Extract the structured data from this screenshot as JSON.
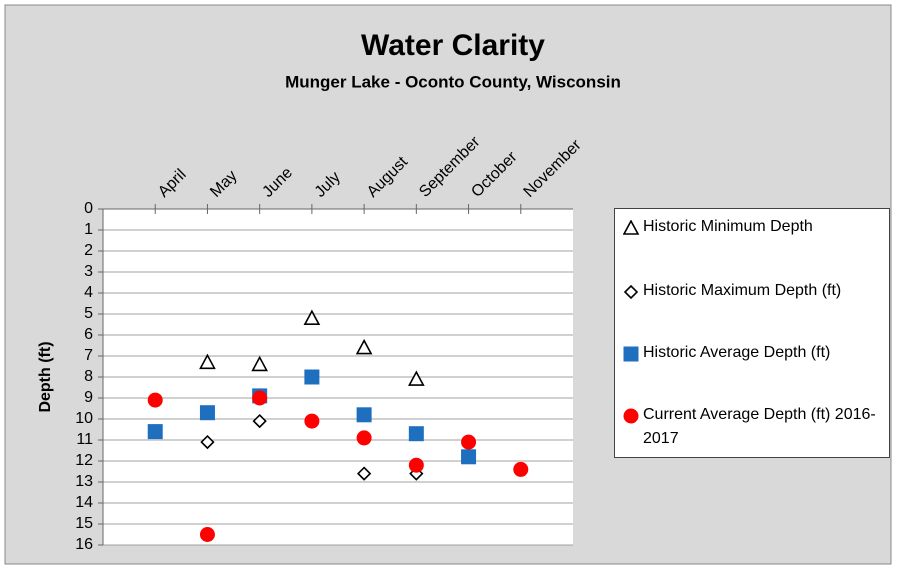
{
  "chart_data": {
    "type": "scatter",
    "title": "Water Clarity",
    "subtitle": "Munger Lake - Oconto County, Wisconsin",
    "y_label": "Depth (ft)",
    "categories": [
      "April",
      "May",
      "June",
      "July",
      "August",
      "September",
      "October",
      "November"
    ],
    "ylim": [
      0,
      16
    ],
    "y_inverted": true,
    "yticks": [
      0,
      1,
      2,
      3,
      4,
      5,
      6,
      7,
      8,
      9,
      10,
      11,
      12,
      13,
      14,
      15,
      16
    ],
    "grid": true,
    "legend": "right",
    "series": [
      {
        "name": "Historic Minimum Depth",
        "marker": "triangle",
        "filled": false,
        "color": "#000000",
        "values": [
          null,
          7.3,
          7.4,
          5.2,
          6.6,
          8.1,
          null,
          null
        ]
      },
      {
        "name": "Historic Maximum Depth (ft)",
        "marker": "diamond",
        "filled": false,
        "color": "#000000",
        "values": [
          10.6,
          11.1,
          10.1,
          10.1,
          12.6,
          12.6,
          11.8,
          null
        ]
      },
      {
        "name": "Historic Average Depth (ft)",
        "marker": "square",
        "filled": true,
        "color": "#1f6fbf",
        "values": [
          10.6,
          9.7,
          8.9,
          8.0,
          9.8,
          10.7,
          11.8,
          null
        ]
      },
      {
        "name": "Current Average Depth (ft) 2016-2017",
        "marker": "circle",
        "filled": true,
        "color": "#ff0000",
        "values": [
          9.1,
          15.5,
          9.0,
          10.1,
          10.9,
          12.2,
          11.1,
          12.4
        ]
      }
    ]
  }
}
